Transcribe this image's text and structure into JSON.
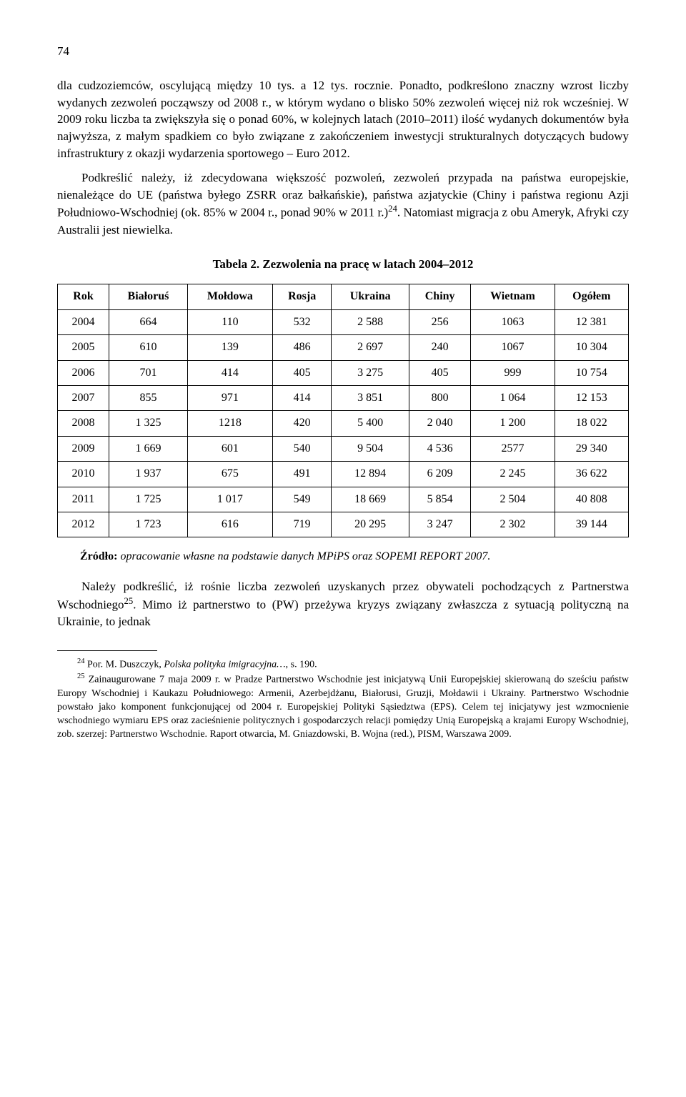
{
  "page_number": "74",
  "paragraphs": {
    "p1": "dla cudzoziemców, oscylującą między 10 tys. a 12 tys. rocznie. Ponadto, podkreślono znaczny wzrost liczby wydanych zezwoleń począwszy od 2008 r., w którym wydano o blisko 50% zezwoleń więcej niż rok wcześniej. W 2009 roku liczba ta zwiększyła się o ponad 60%, w kolejnych latach (2010–2011) ilość wydanych dokumentów była najwyższa, z małym spadkiem co było związane z zakończeniem inwestycji strukturalnych dotyczących budowy infrastruktury z okazji wydarzenia sportowego – Euro 2012.",
    "p2_a": "Podkreślić należy, iż zdecydowana większość pozwoleń, zezwoleń przypada na państwa europejskie, nienależące do UE (państwa byłego ZSRR oraz bałkańskie), państwa azjatyckie (Chiny i państwa regionu Azji Południowo-Wschodniej (ok. 85% w 2004 r., ponad 90% w 2011 r.)",
    "p2_sup": "24",
    "p2_b": ". Natomiast migracja z obu Ameryk, Afryki czy Australii jest niewielka.",
    "p3_a": "Należy podkreślić, iż rośnie liczba zezwoleń uzyskanych przez obywateli pochodzących z Partnerstwa Wschodniego",
    "p3_sup": "25",
    "p3_b": ". Mimo iż partnerstwo to (PW) przeżywa kryzys związany zwłaszcza z sytuacją polityczną na Ukrainie, to jednak"
  },
  "table": {
    "caption": "Tabela 2. Zezwolenia na pracę w latach 2004–2012",
    "columns": [
      "Rok",
      "Białoruś",
      "Mołdowa",
      "Rosja",
      "Ukraina",
      "Chiny",
      "Wietnam",
      "Ogółem"
    ],
    "rows": [
      [
        "2004",
        "664",
        "110",
        "532",
        "2 588",
        "256",
        "1063",
        "12 381"
      ],
      [
        "2005",
        "610",
        "139",
        "486",
        "2 697",
        "240",
        "1067",
        "10 304"
      ],
      [
        "2006",
        "701",
        "414",
        "405",
        "3 275",
        "405",
        "999",
        "10 754"
      ],
      [
        "2007",
        "855",
        "971",
        "414",
        "3 851",
        "800",
        "1 064",
        "12 153"
      ],
      [
        "2008",
        "1 325",
        "1218",
        "420",
        "5 400",
        "2 040",
        "1 200",
        "18 022"
      ],
      [
        "2009",
        "1 669",
        "601",
        "540",
        "9 504",
        "4 536",
        "2577",
        "29 340"
      ],
      [
        "2010",
        "1 937",
        "675",
        "491",
        "12 894",
        "6 209",
        "2 245",
        "36 622"
      ],
      [
        "2011",
        "1 725",
        "1 017",
        "549",
        "18 669",
        "5 854",
        "2 504",
        "40 808"
      ],
      [
        "2012",
        "1 723",
        "616",
        "719",
        "20 295",
        "3 247",
        "2 302",
        "39 144"
      ]
    ],
    "source_label": "Źródło:",
    "source_text": " opracowanie własne na podstawie danych MPiPS oraz SOPEMI REPORT 2007."
  },
  "footnotes": {
    "f24_num": "24",
    "f24_a": " Por. M. Duszczyk, ",
    "f24_italic": "Polska polityka imigracyjna…",
    "f24_b": ", s. 190.",
    "f25_num": "25",
    "f25": " Zainaugurowane 7 maja 2009 r. w Pradze Partnerstwo Wschodnie jest inicjatywą Unii Europejskiej skierowaną do sześciu państw Europy Wschodniej i Kaukazu Południowego: Armenii, Azerbejdżanu, Białorusi, Gruzji, Mołdawii i Ukrainy. Partnerstwo Wschodnie powstało jako komponent funkcjonującej od 2004 r. Europejskiej Polityki Sąsiedztwa (EPS). Celem tej inicjatywy jest wzmocnienie wschodniego wymiaru EPS oraz zacieśnienie politycznych i gospodarczych relacji pomiędzy Unią Europejską a krajami Europy Wschodniej, zob. szerzej: Partnerstwo Wschodnie. Raport otwarcia, M. Gniazdowski, B. Wojna (red.), PISM, Warszawa 2009."
  }
}
